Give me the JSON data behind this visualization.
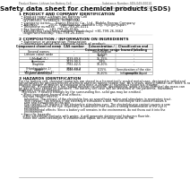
{
  "header_left": "Product Name: Lithium Ion Battery Cell",
  "header_right": "Substance Number: SDS-049-00010\nEstablished / Revision: Dec.7.2010",
  "title": "Safety data sheet for chemical products (SDS)",
  "section1_title": "1 PRODUCT AND COMPANY IDENTIFICATION",
  "section1_lines": [
    "  • Product name: Lithium Ion Battery Cell",
    "  • Product code: Cylindrical-type cell",
    "    (SV18650U, SV18650L, SV18650A)",
    "  • Company name:     Sanyo Electric Co., Ltd., Mobile Energy Company",
    "  • Address:           2001, Kamimahara, Sumoto City, Hyogo, Japan",
    "  • Telephone number:     +81-799-26-4111",
    "  • Fax number:     +81-799-26-4120",
    "  • Emergency telephone number (Weekdays) +81-799-26-3662",
    "    (Night and holiday) +81-799-26-4001"
  ],
  "section2_title": "2 COMPOSITION / INFORMATION ON INGREDIENTS",
  "section2_sub1": "  • Substance or preparation: Preparation",
  "section2_sub2": "  • Information about the chemical nature of product:",
  "table_headers": [
    "Component chemical name",
    "CAS number",
    "Concentration /\nConcentration range",
    "Classification and\nhazard labeling"
  ],
  "table_rows": [
    [
      "Several names",
      "-",
      "Concentration\nrange",
      "-"
    ],
    [
      "Lithium cobalt oxide\n(LiMnCoO₂O₄)",
      "-",
      "30-60%",
      "-"
    ],
    [
      "Iron",
      "7439-89-6",
      "15-25%",
      "-"
    ],
    [
      "Aluminum",
      "7429-90-5",
      "2-8%",
      "-"
    ],
    [
      "Graphite\n(Hard graphite-1)\n(All fixed graphite-1)",
      "7782-42-5\n7782-44-2",
      "10-20%",
      "-"
    ],
    [
      "Copper",
      "7440-50-8",
      "0-15%",
      "Sensitization of the skin\ngroup No.2"
    ],
    [
      "Organic electrolyte",
      "-",
      "10-20%",
      "Inflammable liquid"
    ]
  ],
  "section3_title": "3 HAZARDS IDENTIFICATION",
  "section3_para1": [
    "For the battery cell, chemical materials are stored in a hermetically sealed metal case, designed to withstand",
    "temperatures by physical/electro-chemical reaction during normal use. As a result, during normal use, there is no",
    "physical danger of ignition or explosion and there is danger of hazardous materials leakage.",
    "   However, if exposed to a fire, added mechanical shocks, decomposed, when electro-chemical dry mass can",
    "be gas release cannot be operated. The battery cell case will be breached of fire-patterms, hazardous",
    "materials may be released.",
    "   Moreover, if heated strongly by the surrounding fire, solid gas may be emitted."
  ],
  "section3_bullet1": "  • Most important hazard and effects:",
  "section3_health": "    Human health effects:",
  "section3_health_lines": [
    "      Inhalation: The release of the electrolyte has an anaesthesia action and stimulates in respiratory tract.",
    "      Skin contact: The release of the electrolyte stimulates a skin. The electrolyte skin contact causes a",
    "      sore and stimulation on the skin.",
    "      Eye contact: The release of the electrolyte stimulates eyes. The electrolyte eye contact causes a sore",
    "      and stimulation on the eye. Especially, a substance that causes a strong inflammation of the eye is",
    "      contained.",
    "      Environmental effects: Since a battery cell remains in the environment, do not throw out it into the",
    "      environment."
  ],
  "section3_bullet2": "  • Specific hazards:",
  "section3_specific": [
    "    If the electrolyte contacts with water, it will generate detrimental hydrogen fluoride.",
    "    Since the used electrolyte is inflammable liquid, do not bring close to fire."
  ],
  "bg_color": "#ffffff",
  "text_color": "#111111",
  "gray_color": "#555555",
  "line_color": "#999999",
  "header_bg": "#f0f0f0"
}
